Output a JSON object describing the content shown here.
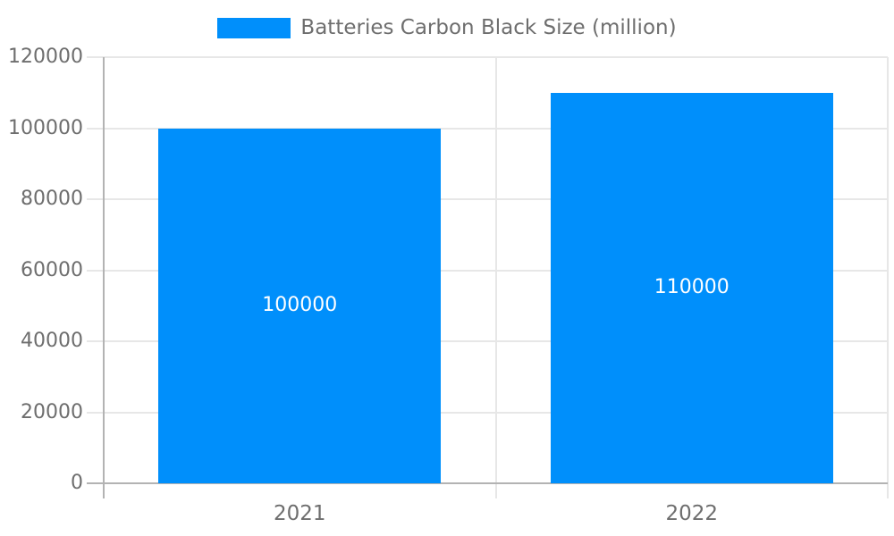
{
  "legend": {
    "label": "Batteries Carbon Black Size (million)",
    "swatch_color": "#008FFB"
  },
  "chart_data": {
    "type": "bar",
    "title": "",
    "xlabel": "",
    "ylabel": "",
    "categories": [
      "2021",
      "2022"
    ],
    "values": [
      100000,
      110000
    ],
    "series": [
      {
        "name": "Batteries Carbon Black Size (million)",
        "values": [
          100000,
          110000
        ]
      }
    ],
    "bar_value_labels": [
      "100000",
      "110000"
    ],
    "ylim": [
      0,
      120000
    ],
    "yticks": [
      0,
      20000,
      40000,
      60000,
      80000,
      100000,
      120000
    ],
    "ytick_labels": [
      "0",
      "20000",
      "40000",
      "60000",
      "80000",
      "100000",
      "120000"
    ],
    "grid": true,
    "legend_position": "top",
    "colors": {
      "bar": "#008FFB",
      "grid": "#e7e7e7",
      "axis": "#b3b3b3",
      "tick_label": "#6e6e6e",
      "value_label": "#ffffff",
      "background": "#ffffff"
    }
  }
}
